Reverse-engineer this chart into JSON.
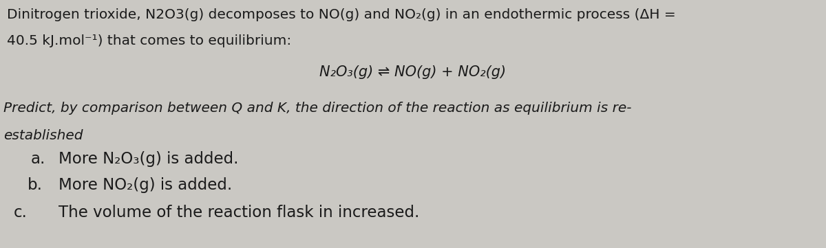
{
  "background_color": "#cac8c3",
  "text_color": "#1a1a1a",
  "figsize": [
    12.0,
    3.61
  ],
  "dpi": 100,
  "line1": "Dinitrogen trioxide, N2O3(g) decomposes to NO(g) and NO₂(g) in an endothermic process (ΔH =",
  "line2": "40.5 kJ.mol⁻¹) that comes to equilibrium:",
  "equation": "N₂O₃(g) ⇌ NO(g) + NO₂(g)",
  "predict_line": "Predict, by comparison between Q and K, the direction of the reaction as equilibrium is re-",
  "established": "established",
  "item_a": "More N₂O₃(g) is added.",
  "item_b": "More NO₂(g) is added.",
  "item_c": "The volume of the reaction flask in increased.",
  "label_a": "a.",
  "label_b": "b.",
  "label_c": "c.",
  "font_size_main": 14.5,
  "font_size_equation": 15.0,
  "font_size_items": 16.5,
  "font_size_predict": 14.5
}
